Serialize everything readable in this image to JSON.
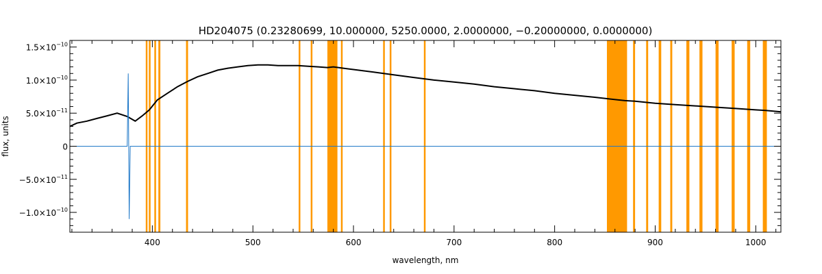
{
  "chart_data": {
    "type": "line",
    "title": "HD204075    (0.23280699, 10.000000, 5250.0000, 2.0000000, −0.20000000, 0.0000000)",
    "xlabel": "wavelength, nm",
    "ylabel": "flux, units",
    "xlim": [
      318,
      1025
    ],
    "ylim": [
      -1.3e-10,
      1.6e-10
    ],
    "x_ticks": [
      {
        "value": 400,
        "label": "400"
      },
      {
        "value": 500,
        "label": "500"
      },
      {
        "value": 600,
        "label": "600"
      },
      {
        "value": 700,
        "label": "700"
      },
      {
        "value": 800,
        "label": "800"
      },
      {
        "value": 900,
        "label": "900"
      },
      {
        "value": 1000,
        "label": "1000"
      }
    ],
    "y_ticks": [
      {
        "value": 1.5e-10,
        "base": "1.5×10",
        "exp": "−10"
      },
      {
        "value": 1e-10,
        "base": "1.0×10",
        "exp": "−10"
      },
      {
        "value": 5e-11,
        "base": "5.0×10",
        "exp": "−11"
      },
      {
        "value": 0,
        "base": "0",
        "exp": ""
      },
      {
        "value": -5e-11,
        "base": "−5.0×10",
        "exp": "−11"
      },
      {
        "value": -1e-10,
        "base": "−1.0×10",
        "exp": "−10"
      }
    ],
    "x_minor_step": 20,
    "y_minor_step": 1e-11,
    "series": [
      {
        "color": "#000000",
        "x": [
          318,
          325,
          335,
          345,
          355,
          365,
          375,
          383,
          390,
          397,
          405,
          415,
          425,
          435,
          445,
          455,
          465,
          475,
          485,
          495,
          505,
          515,
          525,
          535,
          545,
          555,
          565,
          574,
          580,
          590,
          600,
          620,
          640,
          660,
          680,
          700,
          720,
          740,
          760,
          780,
          800,
          820,
          840,
          852,
          870,
          880,
          900,
          920,
          940,
          960,
          980,
          1000,
          1010,
          1025
        ],
        "y": [
          3e-11,
          3.5e-11,
          3.8e-11,
          4.2e-11,
          4.6e-11,
          5e-11,
          4.5e-11,
          3.8e-11,
          4.6e-11,
          5.5e-11,
          7e-11,
          8e-11,
          9e-11,
          9.8e-11,
          1.05e-10,
          1.1e-10,
          1.15e-10,
          1.18e-10,
          1.2e-10,
          1.22e-10,
          1.23e-10,
          1.23e-10,
          1.22e-10,
          1.22e-10,
          1.22e-10,
          1.21e-10,
          1.2e-10,
          1.19e-10,
          1.2e-10,
          1.18e-10,
          1.16e-10,
          1.12e-10,
          1.08e-10,
          1.04e-10,
          1e-10,
          9.7e-11,
          9.4e-11,
          9e-11,
          8.7e-11,
          8.4e-11,
          8e-11,
          7.7e-11,
          7.4e-11,
          7.2e-11,
          6.9e-11,
          6.8e-11,
          6.5e-11,
          6.3e-11,
          6.1e-11,
          5.9e-11,
          5.7e-11,
          5.5e-11,
          5.4e-11,
          5.2e-11
        ]
      },
      {
        "color": "#1f78c8",
        "x": [
          318,
          375,
          376,
          377,
          378,
          1025
        ],
        "y": [
          0,
          0,
          1.1e-10,
          -1.1e-10,
          0,
          0
        ]
      }
    ],
    "masked_bands": {
      "color": "#ff9900",
      "ranges": [
        [
          393.5,
          394.5
        ],
        [
          396.5,
          397.5
        ],
        [
          402,
          403.5
        ],
        [
          406,
          408
        ],
        [
          433.5,
          435.5
        ],
        [
          545.5,
          547
        ],
        [
          557.5,
          559
        ],
        [
          574,
          584
        ],
        [
          587.5,
          589
        ],
        [
          629.5,
          631
        ],
        [
          636,
          637.5
        ],
        [
          670,
          671.5
        ],
        [
          852,
          872
        ],
        [
          878,
          880
        ],
        [
          891,
          893
        ],
        [
          903.5,
          906
        ],
        [
          915,
          917
        ],
        [
          931,
          934
        ],
        [
          944,
          947
        ],
        [
          960,
          963
        ],
        [
          976,
          979
        ],
        [
          991.5,
          994.5
        ],
        [
          1007,
          1011
        ]
      ]
    }
  }
}
